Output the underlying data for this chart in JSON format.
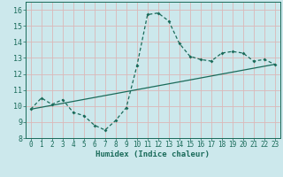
{
  "xlabel": "Humidex (Indice chaleur)",
  "xlim": [
    -0.5,
    23.5
  ],
  "ylim": [
    8,
    16.5
  ],
  "yticks": [
    8,
    9,
    10,
    11,
    12,
    13,
    14,
    15,
    16
  ],
  "xticks": [
    0,
    1,
    2,
    3,
    4,
    5,
    6,
    7,
    8,
    9,
    10,
    11,
    12,
    13,
    14,
    15,
    16,
    17,
    18,
    19,
    20,
    21,
    22,
    23
  ],
  "bg_color": "#cce8ec",
  "grid_color": "#dbb8b8",
  "line_color": "#1a6b5a",
  "humidex_x": [
    0,
    1,
    2,
    3,
    4,
    5,
    6,
    7,
    8,
    9,
    10,
    11,
    12,
    13,
    14,
    15,
    16,
    17,
    18,
    19,
    20,
    21,
    22,
    23
  ],
  "humidex_y": [
    9.8,
    10.5,
    10.1,
    10.4,
    9.6,
    9.4,
    8.8,
    8.5,
    9.1,
    9.9,
    12.5,
    15.7,
    15.8,
    15.3,
    13.9,
    13.1,
    12.9,
    12.8,
    13.3,
    13.4,
    13.3,
    12.8,
    12.9,
    12.6
  ],
  "trend_x": [
    0,
    23
  ],
  "trend_y": [
    9.8,
    12.6
  ]
}
